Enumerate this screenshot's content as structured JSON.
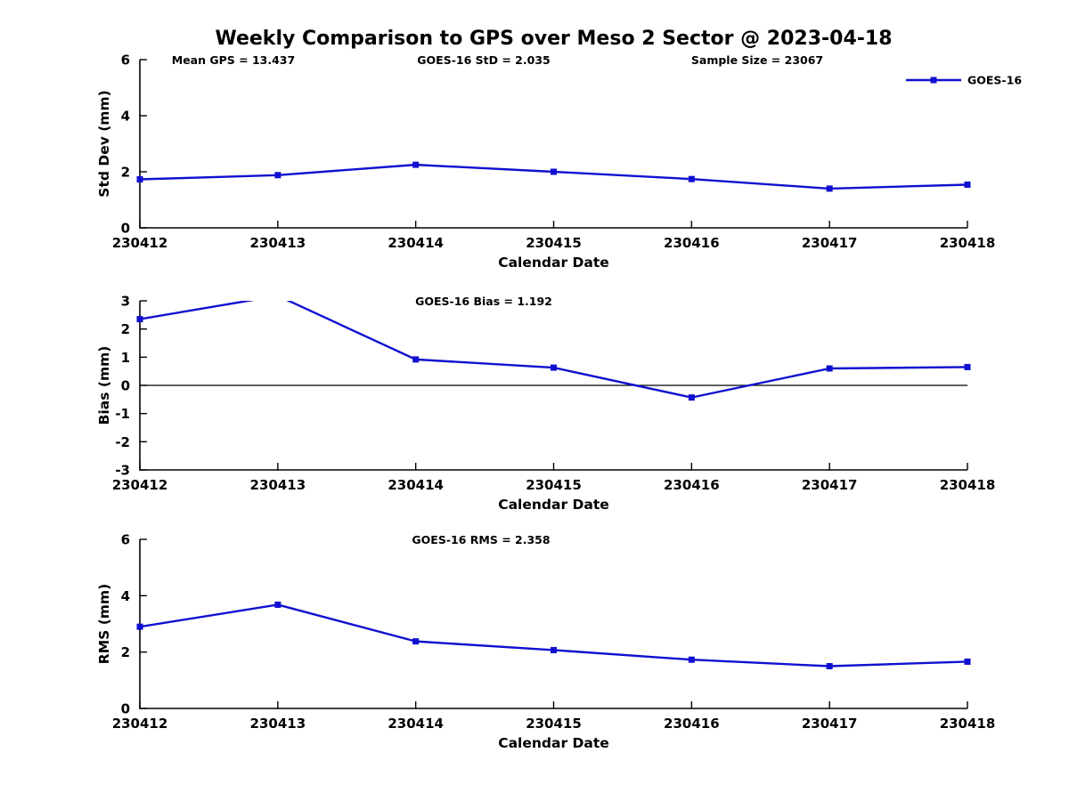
{
  "figure": {
    "title": "Weekly Comparison to GPS over Meso 2 Sector @ 2023-04-18",
    "series_color": "#1010d0",
    "axis_color": "#000000",
    "legend": {
      "label": "GOES-16",
      "position": "top-right"
    }
  },
  "chart_data": [
    {
      "type": "line",
      "name": "std-dev",
      "title": "",
      "categories": [
        "230412",
        "230413",
        "230414",
        "230415",
        "230416",
        "230417",
        "230418"
      ],
      "values": [
        1.73,
        1.88,
        2.25,
        2.0,
        1.74,
        1.4,
        1.54
      ],
      "xlabel": "Calendar Date",
      "ylabel": "Std Dev (mm)",
      "ylim": [
        0,
        6
      ],
      "yticks": [
        0,
        2,
        4,
        6
      ],
      "grid": false,
      "annotations": [
        "Mean GPS = 13.437",
        "GOES-16 StD = 2.035",
        "Sample Size = 23067"
      ],
      "legend_entries": [
        "GOES-16"
      ],
      "legend_position": "top-right"
    },
    {
      "type": "line",
      "name": "bias",
      "title": "",
      "categories": [
        "230412",
        "230413",
        "230414",
        "230415",
        "230416",
        "230417",
        "230418"
      ],
      "values": [
        2.35,
        3.18,
        0.92,
        0.63,
        -0.43,
        0.6,
        0.65
      ],
      "xlabel": "Calendar Date",
      "ylabel": "Bias (mm)",
      "ylim": [
        -3,
        3
      ],
      "yticks": [
        3,
        2,
        1,
        0,
        -1,
        -2,
        -3
      ],
      "grid": false,
      "zero_line": true,
      "annotations": [
        "GOES-16 Bias  = 1.192"
      ]
    },
    {
      "type": "line",
      "name": "rms",
      "title": "",
      "categories": [
        "230412",
        "230413",
        "230414",
        "230415",
        "230416",
        "230417",
        "230418"
      ],
      "values": [
        2.9,
        3.68,
        2.38,
        2.07,
        1.73,
        1.5,
        1.66
      ],
      "xlabel": "Calendar Date",
      "ylabel": "RMS (mm)",
      "ylim": [
        0,
        6
      ],
      "yticks": [
        0,
        2,
        4,
        6
      ],
      "grid": false,
      "annotations": [
        "GOES-16 RMS = 2.358"
      ]
    }
  ]
}
